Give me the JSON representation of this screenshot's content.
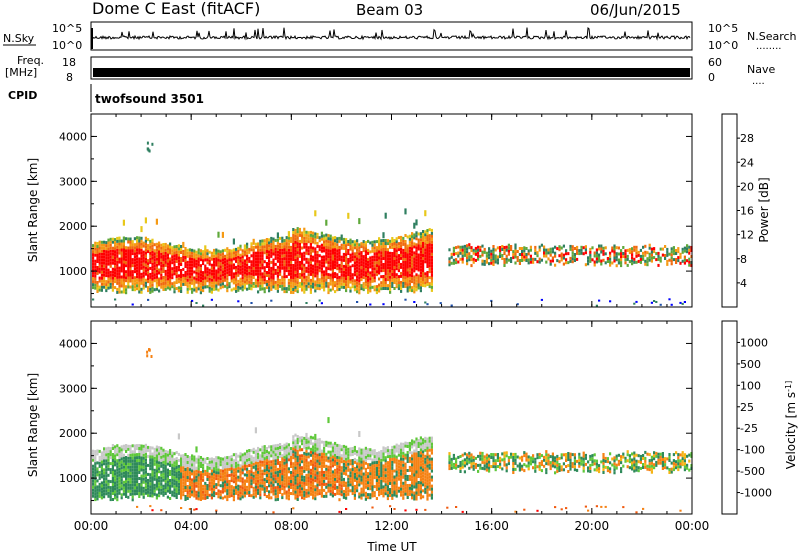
{
  "header": {
    "site": "Dome C East (fitACF)",
    "beam": "Beam 03",
    "date": "06/Jun/2015"
  },
  "status_panels": {
    "nsky_label": "N.Sky",
    "nsky_top": "10^5",
    "nsky_bottom": "10^0",
    "nsearch_label": "N.Search",
    "nsearch_dots": "........",
    "freq_label_1": "Freq.",
    "freq_label_2": "[MHz]",
    "freq_top": "18",
    "freq_bottom": "8",
    "nave_label": "Nave",
    "nave_dots": "....",
    "nave_top": "60",
    "nave_bottom": "0",
    "cpid_label": "CPID",
    "cpid_value": "twofsound 3501"
  },
  "chart_data": [
    {
      "type": "heatmap",
      "title": "",
      "ylabel": "Slant Range [km]",
      "xlabel": "",
      "ylim": [
        200,
        4500
      ],
      "yticks": [
        "1000",
        "2000",
        "3000",
        "4000"
      ],
      "xticks": [
        "00:00",
        "04:00",
        "08:00",
        "12:00",
        "16:00",
        "20:00",
        "00:00"
      ],
      "colorbar_label": "Power [dB]",
      "colorbar_ticks": [
        "4",
        "8",
        "12",
        "16",
        "20",
        "24",
        "28"
      ],
      "colors": [
        "#0000ff",
        "#1f4fa8",
        "#2f7f60",
        "#5fa83a",
        "#e8c81a",
        "#f59a14",
        "#f06a0f",
        "#ff0000"
      ]
    },
    {
      "type": "heatmap",
      "title": "",
      "ylabel": "Slant Range [km]",
      "xlabel": "Time UT",
      "ylim": [
        200,
        4500
      ],
      "yticks": [
        "1000",
        "2000",
        "3000",
        "4000"
      ],
      "xticks": [
        "00:00",
        "04:00",
        "08:00",
        "12:00",
        "16:00",
        "20:00",
        "00:00"
      ],
      "colorbar_label": "Velocity [m s^-1]",
      "colorbar_ticks": [
        "1000",
        "500",
        "100",
        "25",
        "-25",
        "-100",
        "-500",
        "-1000"
      ],
      "colors": [
        "#1c3f9e",
        "#2f6f9e",
        "#2f8a5a",
        "#5fc83a",
        "#c8c8c8",
        "#f5b414",
        "#f58214",
        "#f05a0f",
        "#ff0000"
      ]
    }
  ]
}
